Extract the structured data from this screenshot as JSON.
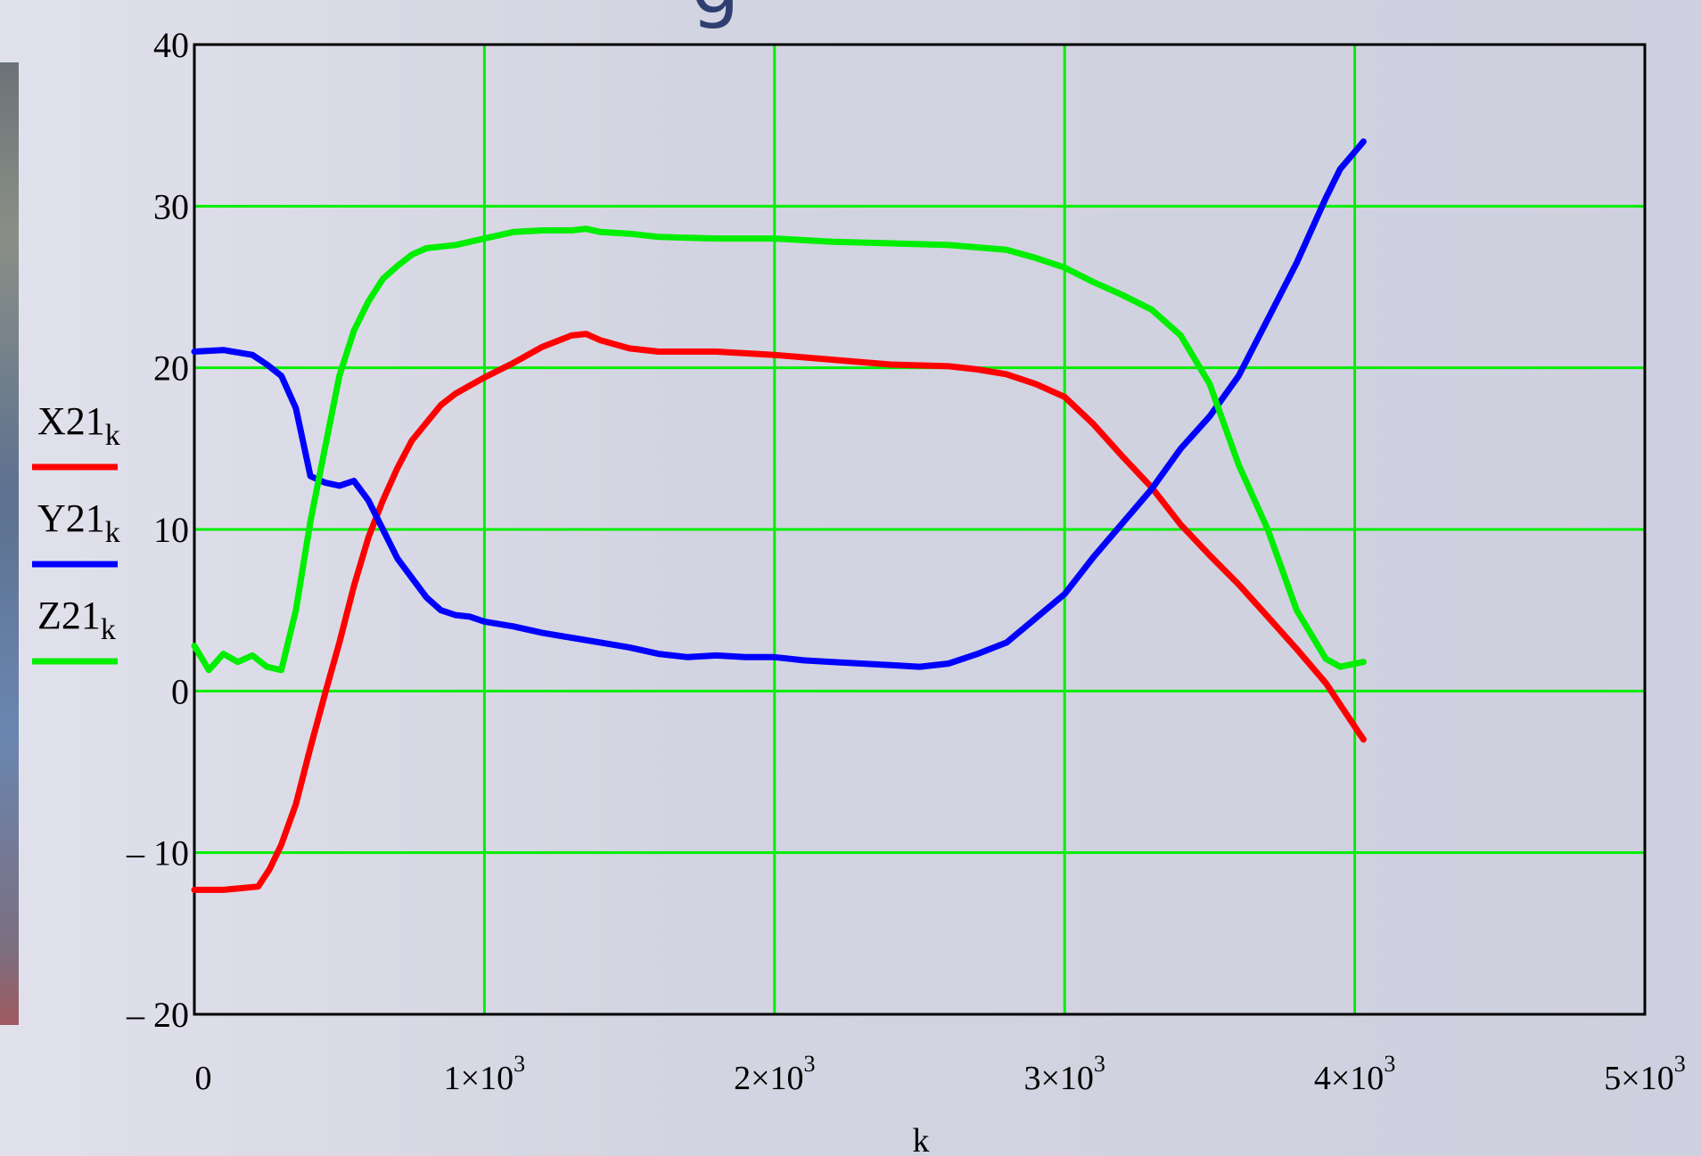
{
  "slide": {
    "title_fragment": "g"
  },
  "chart_data": {
    "type": "line",
    "title": "",
    "xlabel": "k",
    "ylabel": "",
    "xlim": [
      0,
      5000
    ],
    "ylim": [
      -20,
      40
    ],
    "grid": true,
    "grid_color": "#00ee00",
    "legend_placement": "left",
    "x_ticks": [
      {
        "value": 0,
        "base": "0",
        "exp": ""
      },
      {
        "value": 1000,
        "base": "1×10",
        "exp": "3"
      },
      {
        "value": 2000,
        "base": "2×10",
        "exp": "3"
      },
      {
        "value": 3000,
        "base": "3×10",
        "exp": "3"
      },
      {
        "value": 4000,
        "base": "4×10",
        "exp": "3"
      },
      {
        "value": 5000,
        "base": "5×10",
        "exp": "3"
      }
    ],
    "y_ticks": [
      {
        "value": 40,
        "label": "40"
      },
      {
        "value": 30,
        "label": "30"
      },
      {
        "value": 20,
        "label": "20"
      },
      {
        "value": 10,
        "label": "10"
      },
      {
        "value": 0,
        "label": "0"
      },
      {
        "value": -10,
        "label": "– 10"
      },
      {
        "value": -20,
        "label": "– 20"
      }
    ],
    "series": [
      {
        "name": "X21",
        "subscript": "k",
        "color": "#ff0000",
        "x": [
          0,
          100,
          220,
          260,
          300,
          350,
          400,
          450,
          500,
          550,
          600,
          650,
          700,
          750,
          800,
          850,
          900,
          950,
          1000,
          1100,
          1200,
          1300,
          1350,
          1400,
          1500,
          1600,
          1800,
          2000,
          2200,
          2400,
          2600,
          2700,
          2800,
          2900,
          3000,
          3100,
          3200,
          3300,
          3400,
          3500,
          3600,
          3700,
          3800,
          3900,
          4000,
          4030
        ],
        "y": [
          -12.3,
          -12.3,
          -12.1,
          -11,
          -9.5,
          -7,
          -3.5,
          -0.2,
          3,
          6.5,
          9.5,
          11.8,
          13.8,
          15.5,
          16.6,
          17.7,
          18.4,
          18.9,
          19.4,
          20.3,
          21.3,
          22,
          22.1,
          21.7,
          21.2,
          21,
          21,
          20.8,
          20.5,
          20.2,
          20.1,
          19.9,
          19.6,
          19,
          18.2,
          16.5,
          14.5,
          12.6,
          10.3,
          8.4,
          6.6,
          4.6,
          2.6,
          0.5,
          -2.2,
          -3
        ]
      },
      {
        "name": "Y21",
        "subscript": "k",
        "color": "#0000ff",
        "x": [
          0,
          100,
          200,
          250,
          300,
          350,
          400,
          450,
          500,
          550,
          600,
          650,
          700,
          750,
          800,
          850,
          900,
          950,
          1000,
          1100,
          1200,
          1300,
          1400,
          1500,
          1600,
          1700,
          1800,
          1900,
          2000,
          2100,
          2200,
          2300,
          2400,
          2500,
          2600,
          2650,
          2700,
          2800,
          2900,
          3000,
          3100,
          3200,
          3300,
          3400,
          3500,
          3600,
          3700,
          3800,
          3900,
          3950,
          4030
        ],
        "y": [
          21,
          21.1,
          20.8,
          20.2,
          19.5,
          17.5,
          13.3,
          12.9,
          12.7,
          13,
          11.8,
          10,
          8.2,
          7,
          5.8,
          5,
          4.7,
          4.6,
          4.3,
          4,
          3.6,
          3.3,
          3,
          2.7,
          2.3,
          2.1,
          2.2,
          2.1,
          2.1,
          1.9,
          1.8,
          1.7,
          1.6,
          1.5,
          1.7,
          2,
          2.3,
          3,
          4.5,
          6,
          8.3,
          10.4,
          12.5,
          15,
          17,
          19.5,
          23,
          26.5,
          30.5,
          32.3,
          34
        ]
      },
      {
        "name": "Z21",
        "subscript": "k",
        "color": "#00ee00",
        "x": [
          0,
          50,
          100,
          150,
          200,
          250,
          300,
          350,
          400,
          450,
          500,
          550,
          600,
          650,
          700,
          750,
          800,
          850,
          900,
          1000,
          1100,
          1200,
          1300,
          1350,
          1400,
          1500,
          1600,
          1800,
          2000,
          2200,
          2400,
          2600,
          2800,
          2900,
          3000,
          3100,
          3200,
          3300,
          3400,
          3500,
          3600,
          3700,
          3800,
          3900,
          3950,
          4030
        ],
        "y": [
          2.8,
          1.3,
          2.3,
          1.8,
          2.2,
          1.5,
          1.3,
          5,
          10.5,
          15,
          19.5,
          22.3,
          24.1,
          25.5,
          26.3,
          27,
          27.4,
          27.5,
          27.6,
          28,
          28.4,
          28.5,
          28.5,
          28.6,
          28.4,
          28.3,
          28.1,
          28,
          28,
          27.8,
          27.7,
          27.6,
          27.3,
          26.8,
          26.2,
          25.3,
          24.5,
          23.6,
          22,
          19,
          14,
          10,
          5,
          2,
          1.5,
          1.8
        ]
      }
    ]
  }
}
